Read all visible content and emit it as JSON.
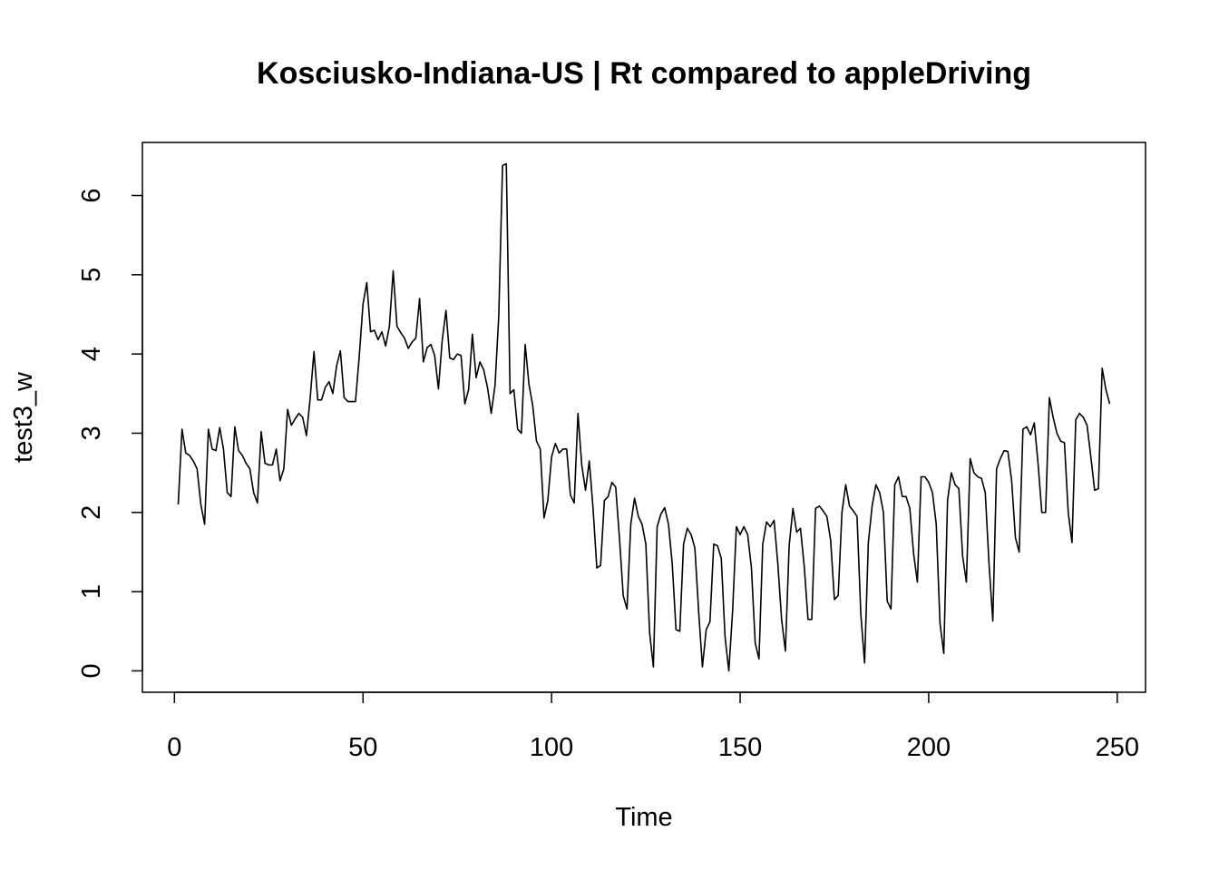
{
  "chart_data": {
    "type": "line",
    "title": "Kosciusko-Indiana-US | Rt compared to appleDriving",
    "xlabel": "Time",
    "ylabel": "test3_w",
    "xlim": [
      -8.5,
      257.5
    ],
    "ylim": [
      -0.27,
      6.67
    ],
    "xticks": [
      0,
      50,
      100,
      150,
      200,
      250
    ],
    "yticks": [
      0,
      1,
      2,
      3,
      4,
      5,
      6
    ],
    "grid": false,
    "line_color": "#000000",
    "series": [
      {
        "x": [
          1,
          2,
          3,
          4,
          5,
          6,
          7,
          8,
          9,
          10,
          11,
          12,
          13,
          14,
          15,
          16,
          17,
          18,
          19,
          20,
          21,
          22,
          23,
          24,
          25,
          26,
          27,
          28,
          29,
          30,
          31,
          32,
          33,
          34,
          35,
          36,
          37,
          38,
          39,
          40,
          41,
          42,
          43,
          44,
          45,
          46,
          47,
          48,
          49,
          50,
          51,
          52,
          53,
          54,
          55,
          56,
          57,
          58,
          59,
          60,
          61,
          62,
          63,
          64,
          65,
          66,
          67,
          68,
          69,
          70,
          71,
          72,
          73,
          74,
          75,
          76,
          77,
          78,
          79,
          80,
          81,
          82,
          83,
          84,
          85,
          86,
          87,
          88,
          89,
          90,
          91,
          92,
          93,
          94,
          95,
          96,
          97,
          98,
          99,
          100,
          101,
          102,
          103,
          104,
          105,
          106,
          107,
          108,
          109,
          110,
          111,
          112,
          113,
          114,
          115,
          116,
          117,
          118,
          119,
          120,
          121,
          122,
          123,
          124,
          125,
          126,
          127,
          128,
          129,
          130,
          131,
          132,
          133,
          134,
          135,
          136,
          137,
          138,
          139,
          140,
          141,
          142,
          143,
          144,
          145,
          146,
          147,
          148,
          149,
          150,
          151,
          152,
          153,
          154,
          155,
          156,
          157,
          158,
          159,
          160,
          161,
          162,
          163,
          164,
          165,
          166,
          167,
          168,
          169,
          170,
          171,
          172,
          173,
          174,
          175,
          176,
          177,
          178,
          179,
          180,
          181,
          182,
          183,
          184,
          185,
          186,
          187,
          188,
          189,
          190,
          191,
          192,
          193,
          194,
          195,
          196,
          197,
          198,
          199,
          200,
          201,
          202,
          203,
          204,
          205,
          206,
          207,
          208,
          209,
          210,
          211,
          212,
          213,
          214,
          215,
          216,
          217,
          218,
          219,
          220,
          221,
          222,
          223,
          224,
          225,
          226,
          227,
          228,
          229,
          230,
          231,
          232,
          233,
          234,
          235,
          236,
          237,
          238,
          239,
          240,
          241,
          242,
          243,
          244,
          245,
          246,
          247,
          248
        ],
        "values": [
          2.1,
          3.05,
          2.75,
          2.72,
          2.65,
          2.55,
          2.1,
          1.85,
          3.05,
          2.8,
          2.78,
          3.07,
          2.8,
          2.25,
          2.2,
          3.08,
          2.78,
          2.72,
          2.62,
          2.55,
          2.25,
          2.12,
          3.02,
          2.62,
          2.6,
          2.6,
          2.8,
          2.4,
          2.55,
          3.3,
          3.1,
          3.18,
          3.25,
          3.2,
          2.97,
          3.45,
          4.03,
          3.42,
          3.42,
          3.58,
          3.65,
          3.5,
          3.85,
          4.04,
          3.45,
          3.4,
          3.4,
          3.4,
          3.97,
          4.63,
          4.9,
          4.28,
          4.3,
          4.18,
          4.28,
          4.1,
          4.35,
          5.05,
          4.35,
          4.27,
          4.2,
          4.07,
          4.15,
          4.2,
          4.7,
          3.9,
          4.08,
          4.12,
          3.98,
          3.56,
          4.17,
          4.55,
          3.95,
          3.93,
          4.0,
          3.98,
          3.37,
          3.55,
          4.25,
          3.7,
          3.9,
          3.8,
          3.58,
          3.25,
          3.6,
          4.48,
          6.38,
          6.4,
          3.5,
          3.55,
          3.05,
          3.0,
          4.12,
          3.62,
          3.35,
          2.9,
          2.8,
          1.93,
          2.15,
          2.7,
          2.87,
          2.75,
          2.8,
          2.8,
          2.22,
          2.12,
          3.25,
          2.6,
          2.28,
          2.65,
          2.05,
          1.3,
          1.33,
          2.15,
          2.2,
          2.38,
          2.32,
          1.68,
          0.95,
          0.78,
          1.85,
          2.18,
          1.95,
          1.85,
          1.6,
          0.48,
          0.05,
          1.82,
          1.98,
          2.06,
          1.85,
          1.35,
          0.52,
          0.5,
          1.6,
          1.8,
          1.72,
          1.55,
          0.75,
          0.05,
          0.52,
          0.62,
          1.6,
          1.58,
          1.42,
          0.43,
          0.0,
          0.75,
          1.82,
          1.72,
          1.82,
          1.72,
          1.3,
          0.35,
          0.15,
          1.6,
          1.88,
          1.82,
          1.9,
          1.35,
          0.65,
          0.25,
          1.58,
          2.05,
          1.75,
          1.8,
          1.32,
          0.65,
          0.65,
          2.05,
          2.08,
          2.02,
          1.95,
          1.65,
          0.9,
          0.95,
          2.0,
          2.35,
          2.08,
          2.02,
          1.95,
          0.72,
          0.1,
          1.62,
          2.08,
          2.35,
          2.25,
          2.0,
          0.88,
          0.78,
          2.35,
          2.45,
          2.2,
          2.2,
          2.05,
          1.48,
          1.12,
          2.45,
          2.45,
          2.38,
          2.25,
          1.85,
          0.6,
          0.22,
          2.15,
          2.5,
          2.35,
          2.3,
          1.45,
          1.12,
          2.68,
          2.5,
          2.45,
          2.43,
          2.25,
          1.35,
          0.63,
          2.55,
          2.68,
          2.78,
          2.77,
          2.4,
          1.68,
          1.5,
          3.05,
          3.08,
          2.98,
          3.13,
          2.62,
          2.0,
          2.0,
          3.45,
          3.2,
          3.0,
          2.9,
          2.88,
          2.0,
          1.62,
          3.17,
          3.25,
          3.2,
          3.1,
          2.7,
          2.28,
          2.3,
          3.82,
          3.55,
          3.37
        ]
      }
    ]
  }
}
